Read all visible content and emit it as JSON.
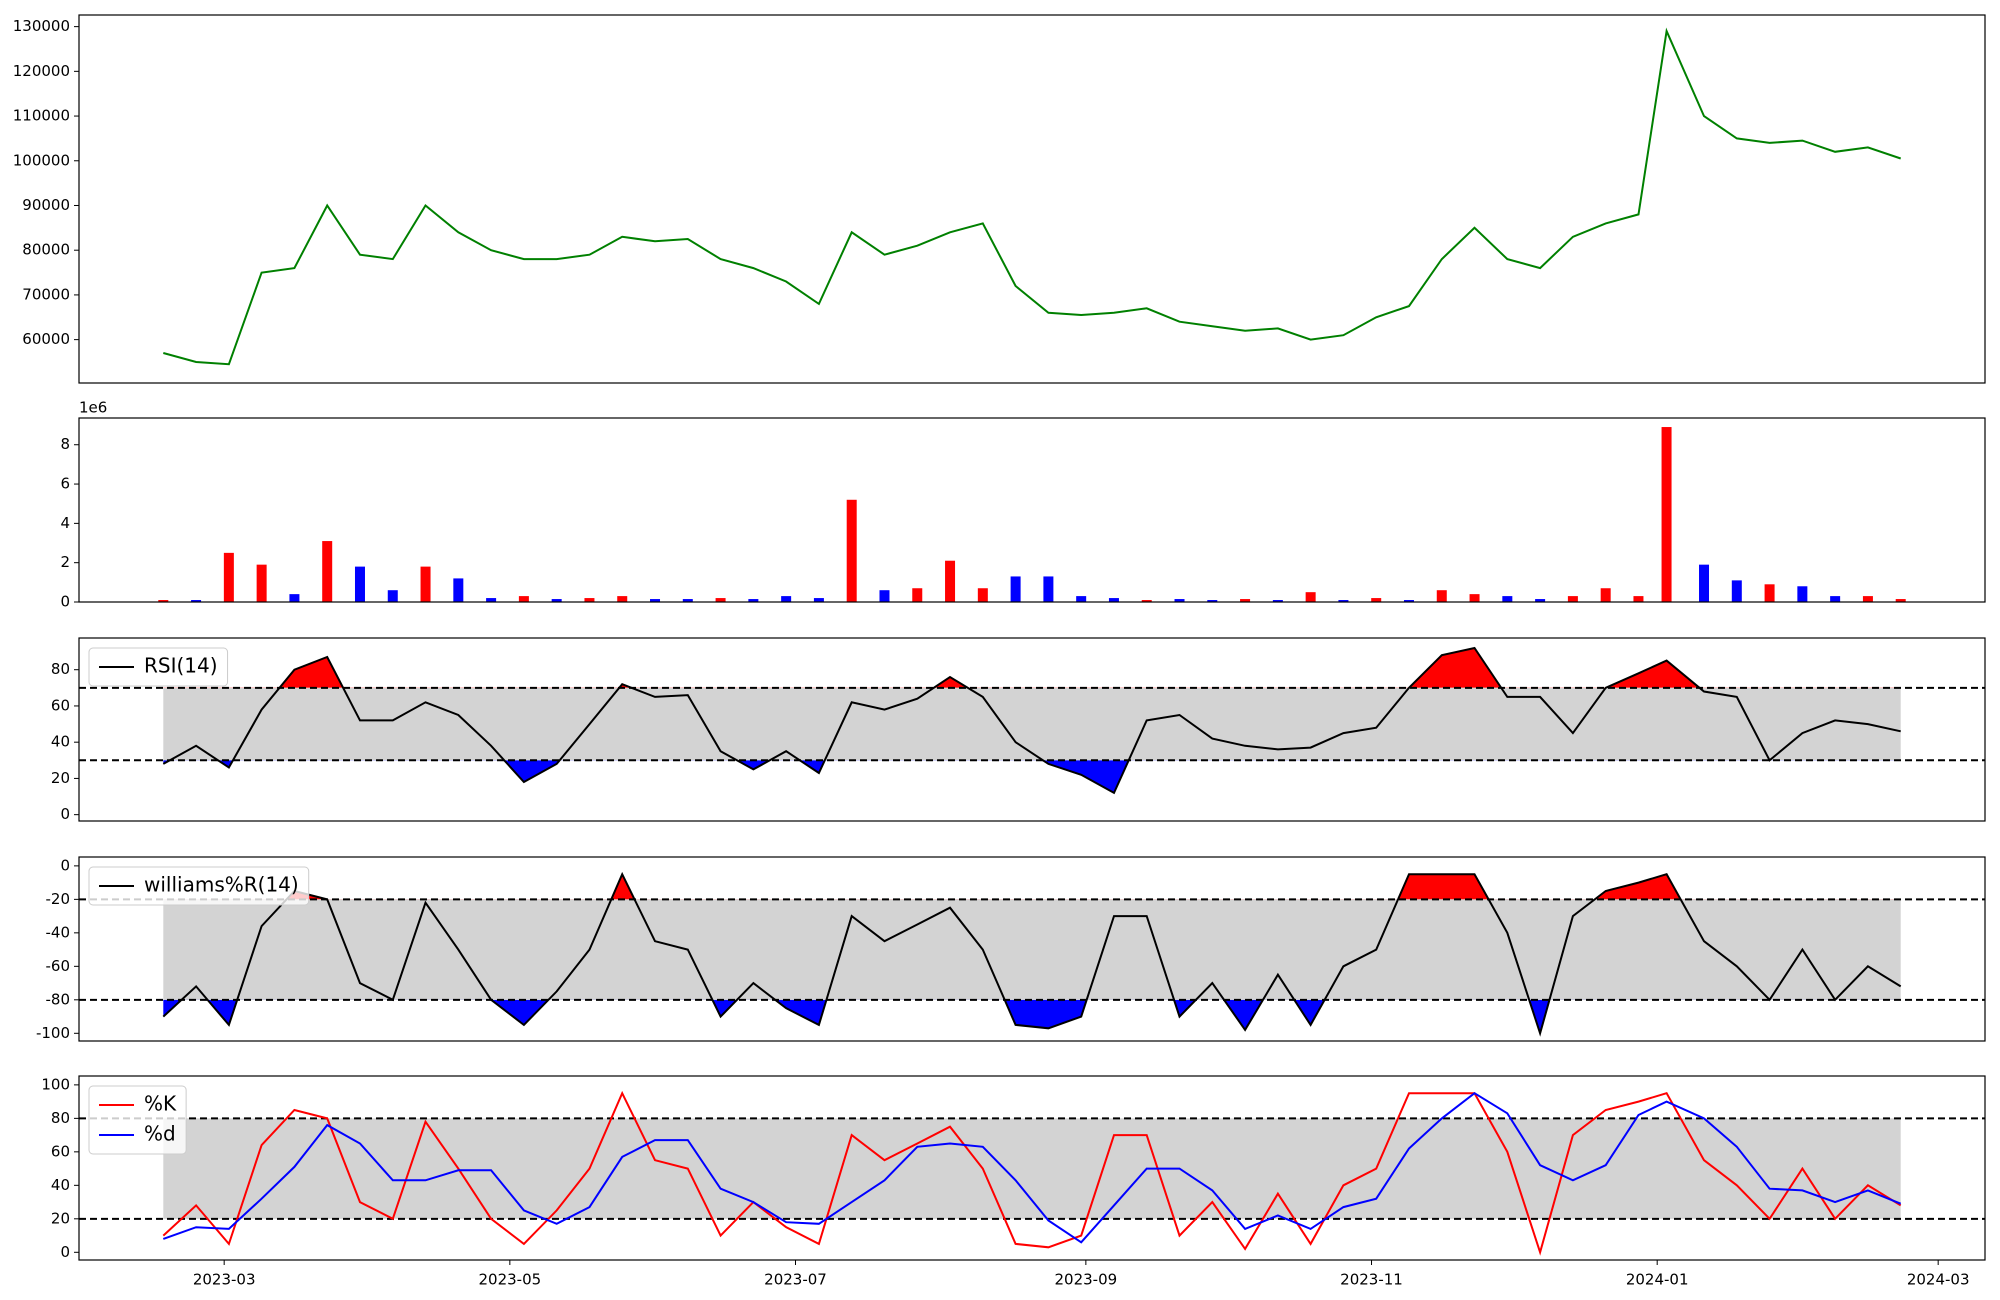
{
  "chart_data": [
    {
      "type": "line",
      "xlim": [
        "2023-01-29",
        "2024-03-11"
      ],
      "ylim": [
        50300,
        132600
      ],
      "yticks": [
        60000,
        70000,
        80000,
        90000,
        100000,
        110000,
        120000,
        130000
      ],
      "x": [
        "2023-02-16",
        "2023-02-23",
        "2023-03-02",
        "2023-03-09",
        "2023-03-16",
        "2023-03-23",
        "2023-03-30",
        "2023-04-06",
        "2023-04-13",
        "2023-04-20",
        "2023-04-27",
        "2023-05-04",
        "2023-05-11",
        "2023-05-18",
        "2023-05-25",
        "2023-06-01",
        "2023-06-08",
        "2023-06-15",
        "2023-06-22",
        "2023-06-29",
        "2023-07-06",
        "2023-07-13",
        "2023-07-20",
        "2023-07-27",
        "2023-08-03",
        "2023-08-10",
        "2023-08-17",
        "2023-08-24",
        "2023-08-31",
        "2023-09-07",
        "2023-09-14",
        "2023-09-21",
        "2023-09-28",
        "2023-10-05",
        "2023-10-12",
        "2023-10-19",
        "2023-10-26",
        "2023-11-02",
        "2023-11-09",
        "2023-11-16",
        "2023-11-23",
        "2023-11-30",
        "2023-12-07",
        "2023-12-14",
        "2023-12-21",
        "2023-12-28",
        "2024-01-03",
        "2024-01-11",
        "2024-01-18",
        "2024-01-25",
        "2024-02-01",
        "2024-02-08",
        "2024-02-15",
        "2024-02-22"
      ],
      "series": [
        {
          "color": "green",
          "values": [
            57000,
            55000,
            54500,
            75000,
            76000,
            90000,
            79000,
            78000,
            90000,
            84000,
            80000,
            78000,
            78000,
            79000,
            83000,
            82000,
            82500,
            78000,
            76000,
            73000,
            68000,
            84000,
            79000,
            81000,
            84000,
            86000,
            72000,
            66000,
            65500,
            66000,
            67000,
            64000,
            63000,
            62000,
            62500,
            60000,
            61000,
            65000,
            67500,
            78000,
            85000,
            78000,
            76000,
            83000,
            86000,
            88000,
            129000,
            110000,
            105000,
            104000,
            104500,
            102000,
            103000,
            100500
          ]
        }
      ]
    },
    {
      "type": "bar",
      "xlim": [
        "2023-01-29",
        "2024-03-11"
      ],
      "ylim": [
        0,
        9.36
      ],
      "yticks": [
        0,
        2,
        4,
        6,
        8
      ],
      "offset_label": "1e6",
      "x": [
        "2023-02-16",
        "2023-02-23",
        "2023-03-02",
        "2023-03-09",
        "2023-03-16",
        "2023-03-23",
        "2023-03-30",
        "2023-04-06",
        "2023-04-13",
        "2023-04-20",
        "2023-04-27",
        "2023-05-04",
        "2023-05-11",
        "2023-05-18",
        "2023-05-25",
        "2023-06-01",
        "2023-06-08",
        "2023-06-15",
        "2023-06-22",
        "2023-06-29",
        "2023-07-06",
        "2023-07-13",
        "2023-07-20",
        "2023-07-27",
        "2023-08-03",
        "2023-08-10",
        "2023-08-17",
        "2023-08-24",
        "2023-08-31",
        "2023-09-07",
        "2023-09-14",
        "2023-09-21",
        "2023-09-28",
        "2023-10-05",
        "2023-10-12",
        "2023-10-19",
        "2023-10-26",
        "2023-11-02",
        "2023-11-09",
        "2023-11-16",
        "2023-11-23",
        "2023-11-30",
        "2023-12-07",
        "2023-12-14",
        "2023-12-21",
        "2023-12-28",
        "2024-01-03",
        "2024-01-11",
        "2024-01-18",
        "2024-01-25",
        "2024-02-01",
        "2024-02-08",
        "2024-02-15",
        "2024-02-22"
      ],
      "series": [
        {
          "values": [
            0.1,
            0.1,
            2.5,
            1.9,
            0.4,
            3.1,
            1.8,
            0.6,
            1.8,
            1.2,
            0.2,
            0.3,
            0.15,
            0.2,
            0.3,
            0.15,
            0.15,
            0.2,
            0.15,
            0.3,
            0.2,
            5.2,
            0.6,
            0.7,
            2.1,
            0.7,
            1.3,
            1.3,
            0.3,
            0.2,
            0.1,
            0.15,
            0.1,
            0.15,
            0.1,
            0.5,
            0.1,
            0.2,
            0.1,
            0.6,
            0.4,
            0.3,
            0.15,
            0.3,
            0.7,
            0.3,
            8.9,
            1.9,
            1.1,
            0.9,
            0.8,
            0.3,
            0.3,
            0.15
          ],
          "colors": [
            "red",
            "blue",
            "red",
            "red",
            "blue",
            "red",
            "blue",
            "blue",
            "red",
            "blue",
            "blue",
            "red",
            "blue",
            "red",
            "red",
            "blue",
            "blue",
            "red",
            "blue",
            "blue",
            "blue",
            "red",
            "blue",
            "red",
            "red",
            "red",
            "blue",
            "blue",
            "blue",
            "blue",
            "red",
            "blue",
            "blue",
            "red",
            "blue",
            "red",
            "blue",
            "red",
            "blue",
            "red",
            "red",
            "blue",
            "blue",
            "red",
            "red",
            "red",
            "red",
            "blue",
            "blue",
            "red",
            "blue",
            "blue",
            "red",
            "red"
          ]
        }
      ]
    },
    {
      "type": "line",
      "xlim": [
        "2023-01-29",
        "2024-03-11"
      ],
      "ylim": [
        -3.5,
        97.5
      ],
      "yticks": [
        0,
        20,
        40,
        60,
        80
      ],
      "thresholds": [
        70,
        30
      ],
      "band_color": "#d3d3d3",
      "above_color": "red",
      "below_color": "blue",
      "legend": "upper left",
      "x": [
        "2023-02-16",
        "2023-02-23",
        "2023-03-02",
        "2023-03-09",
        "2023-03-16",
        "2023-03-23",
        "2023-03-30",
        "2023-04-06",
        "2023-04-13",
        "2023-04-20",
        "2023-04-27",
        "2023-05-04",
        "2023-05-11",
        "2023-05-18",
        "2023-05-25",
        "2023-06-01",
        "2023-06-08",
        "2023-06-15",
        "2023-06-22",
        "2023-06-29",
        "2023-07-06",
        "2023-07-13",
        "2023-07-20",
        "2023-07-27",
        "2023-08-03",
        "2023-08-10",
        "2023-08-17",
        "2023-08-24",
        "2023-08-31",
        "2023-09-07",
        "2023-09-14",
        "2023-09-21",
        "2023-09-28",
        "2023-10-05",
        "2023-10-12",
        "2023-10-19",
        "2023-10-26",
        "2023-11-02",
        "2023-11-09",
        "2023-11-16",
        "2023-11-23",
        "2023-11-30",
        "2023-12-07",
        "2023-12-14",
        "2023-12-21",
        "2023-12-28",
        "2024-01-03",
        "2024-01-11",
        "2024-01-18",
        "2024-01-25",
        "2024-02-01",
        "2024-02-08",
        "2024-02-15",
        "2024-02-22"
      ],
      "series": [
        {
          "name": "RSI(14)",
          "color": "black",
          "values": [
            28,
            38,
            26,
            58,
            80,
            87,
            52,
            52,
            62,
            55,
            38,
            18,
            28,
            50,
            72,
            65,
            66,
            35,
            25,
            35,
            23,
            62,
            58,
            64,
            76,
            65,
            40,
            28,
            22,
            12,
            52,
            55,
            42,
            38,
            36,
            37,
            45,
            48,
            70,
            88,
            92,
            65,
            65,
            45,
            70,
            78,
            85,
            68,
            65,
            30,
            45,
            52,
            50,
            46
          ]
        }
      ]
    },
    {
      "type": "line",
      "xlim": [
        "2023-01-29",
        "2024-03-11"
      ],
      "ylim": [
        -104.6,
        5.3
      ],
      "yticks": [
        0,
        -20,
        -40,
        -60,
        -80,
        -100
      ],
      "thresholds": [
        -20,
        -80
      ],
      "band_color": "#d3d3d3",
      "above_color": "red",
      "below_color": "blue",
      "legend": "upper left",
      "x": [
        "2023-02-16",
        "2023-02-23",
        "2023-03-02",
        "2023-03-09",
        "2023-03-16",
        "2023-03-23",
        "2023-03-30",
        "2023-04-06",
        "2023-04-13",
        "2023-04-20",
        "2023-04-27",
        "2023-05-04",
        "2023-05-11",
        "2023-05-18",
        "2023-05-25",
        "2023-06-01",
        "2023-06-08",
        "2023-06-15",
        "2023-06-22",
        "2023-06-29",
        "2023-07-06",
        "2023-07-13",
        "2023-07-20",
        "2023-07-27",
        "2023-08-03",
        "2023-08-10",
        "2023-08-17",
        "2023-08-24",
        "2023-08-31",
        "2023-09-07",
        "2023-09-14",
        "2023-09-21",
        "2023-09-28",
        "2023-10-05",
        "2023-10-12",
        "2023-10-19",
        "2023-10-26",
        "2023-11-02",
        "2023-11-09",
        "2023-11-16",
        "2023-11-23",
        "2023-11-30",
        "2023-12-07",
        "2023-12-14",
        "2023-12-21",
        "2023-12-28",
        "2024-01-03",
        "2024-01-11",
        "2024-01-18",
        "2024-01-25",
        "2024-02-01",
        "2024-02-08",
        "2024-02-15",
        "2024-02-22"
      ],
      "series": [
        {
          "name": "williams%R(14)",
          "color": "black",
          "values": [
            -90,
            -72,
            -95,
            -36,
            -15,
            -20,
            -70,
            -80,
            -22,
            -50,
            -80,
            -95,
            -75,
            -50,
            -5,
            -45,
            -50,
            -90,
            -70,
            -85,
            -95,
            -30,
            -45,
            -35,
            -25,
            -50,
            -95,
            -97,
            -90,
            -30,
            -30,
            -90,
            -70,
            -98,
            -65,
            -95,
            -60,
            -50,
            -5,
            -5,
            -5,
            -40,
            -100,
            -30,
            -15,
            -10,
            -5,
            -45,
            -60,
            -80,
            -50,
            -80,
            -60,
            -72
          ]
        }
      ]
    },
    {
      "type": "line",
      "xlim": [
        "2023-01-29",
        "2024-03-11"
      ],
      "ylim": [
        -4.6,
        105.3
      ],
      "yticks": [
        0,
        20,
        40,
        60,
        80,
        100
      ],
      "xticks": [
        "2023-03",
        "2023-05",
        "2023-07",
        "2023-09",
        "2023-11",
        "2024-01",
        "2024-03"
      ],
      "thresholds": [
        80,
        20
      ],
      "band_color": "#d3d3d3",
      "legend": "upper left",
      "x": [
        "2023-02-16",
        "2023-02-23",
        "2023-03-02",
        "2023-03-09",
        "2023-03-16",
        "2023-03-23",
        "2023-03-30",
        "2023-04-06",
        "2023-04-13",
        "2023-04-20",
        "2023-04-27",
        "2023-05-04",
        "2023-05-11",
        "2023-05-18",
        "2023-05-25",
        "2023-06-01",
        "2023-06-08",
        "2023-06-15",
        "2023-06-22",
        "2023-06-29",
        "2023-07-06",
        "2023-07-13",
        "2023-07-20",
        "2023-07-27",
        "2023-08-03",
        "2023-08-10",
        "2023-08-17",
        "2023-08-24",
        "2023-08-31",
        "2023-09-07",
        "2023-09-14",
        "2023-09-21",
        "2023-09-28",
        "2023-10-05",
        "2023-10-12",
        "2023-10-19",
        "2023-10-26",
        "2023-11-02",
        "2023-11-09",
        "2023-11-16",
        "2023-11-23",
        "2023-11-30",
        "2023-12-07",
        "2023-12-14",
        "2023-12-21",
        "2023-12-28",
        "2024-01-03",
        "2024-01-11",
        "2024-01-18",
        "2024-01-25",
        "2024-02-01",
        "2024-02-08",
        "2024-02-15",
        "2024-02-22"
      ],
      "series": [
        {
          "name": "%K",
          "color": "red",
          "values": [
            10,
            28,
            5,
            64,
            85,
            80,
            30,
            20,
            78,
            50,
            20,
            5,
            25,
            50,
            95,
            55,
            50,
            10,
            30,
            15,
            5,
            70,
            55,
            65,
            75,
            50,
            5,
            3,
            10,
            70,
            70,
            10,
            30,
            2,
            35,
            5,
            40,
            50,
            95,
            95,
            95,
            60,
            0,
            70,
            85,
            90,
            95,
            55,
            40,
            20,
            50,
            20,
            40,
            28
          ]
        },
        {
          "name": "%d",
          "color": "blue",
          "values": [
            8,
            15,
            14,
            32,
            51,
            76,
            65,
            43,
            43,
            49,
            49,
            25,
            17,
            27,
            57,
            67,
            67,
            38,
            30,
            18,
            17,
            30,
            43,
            63,
            65,
            63,
            43,
            19,
            6,
            28,
            50,
            50,
            37,
            14,
            22,
            14,
            27,
            32,
            62,
            80,
            95,
            83,
            52,
            43,
            52,
            82,
            90,
            80,
            63,
            38,
            37,
            30,
            37,
            29
          ]
        }
      ]
    }
  ]
}
